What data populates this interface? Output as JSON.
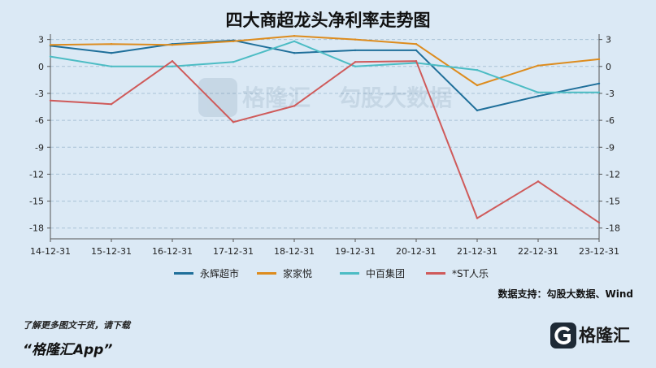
{
  "chart_data": {
    "type": "line",
    "title": "四大商超龙头净利率走势图",
    "categories": [
      "14-12-31",
      "15-12-31",
      "16-12-31",
      "17-12-31",
      "18-12-31",
      "19-12-31",
      "20-12-31",
      "21-12-31",
      "22-12-31",
      "23-12-31"
    ],
    "yticks": [
      "3",
      "0",
      "-3",
      "-6",
      "-9",
      "-12",
      "-15",
      "-18"
    ],
    "ylim": [
      -19.2,
      3.6
    ],
    "series": [
      {
        "name": "永辉超市",
        "color": "#1f6f9a",
        "values": [
          2.3,
          1.5,
          2.5,
          2.9,
          1.5,
          1.8,
          1.8,
          -4.9,
          -3.3,
          -1.9
        ]
      },
      {
        "name": "家家悦",
        "color": "#dd8c1e",
        "values": [
          2.4,
          2.5,
          2.4,
          2.8,
          3.4,
          3.0,
          2.5,
          -2.1,
          0.1,
          0.8
        ]
      },
      {
        "name": "中百集团",
        "color": "#4cbcc4",
        "values": [
          1.1,
          0.0,
          0.0,
          0.5,
          2.8,
          0.0,
          0.4,
          -0.4,
          -2.9,
          -2.9
        ]
      },
      {
        "name": "*ST人乐",
        "color": "#cf5a5a",
        "values": [
          -3.8,
          -4.2,
          0.6,
          -6.2,
          -4.4,
          0.5,
          0.6,
          -16.9,
          -12.8,
          -17.4
        ]
      }
    ]
  },
  "source": "数据支持：勾股大数据、Wind",
  "footer": {
    "promo": "了解更多图文干货，请下载",
    "app": "“格隆汇App”",
    "logo_text": "格隆汇"
  }
}
